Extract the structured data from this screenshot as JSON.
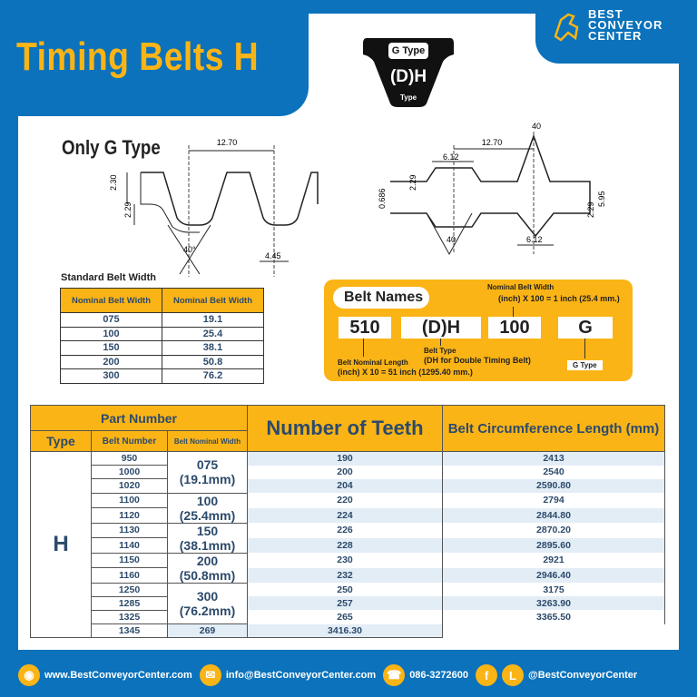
{
  "header": {
    "title": "Timing Belts H",
    "logo_text": [
      "BEST",
      "CONVEYOR",
      "CENTER"
    ]
  },
  "badge": {
    "top": "G Type",
    "middle": "(D)H",
    "bottom": "Type"
  },
  "diagram_left": {
    "label": "Only G Type",
    "dims": [
      "12.70",
      "2.30",
      "2.29",
      "40°",
      "4.45"
    ]
  },
  "diagram_right": {
    "dims": [
      "40",
      "12.70",
      "6.12",
      "2.29",
      "0.686",
      "5.95",
      "2.29",
      "40",
      "6.12"
    ]
  },
  "standard_width": {
    "title": "Standard Belt Width",
    "headers": [
      "Nominal Belt Width",
      "Nominal Belt Width"
    ],
    "rows": [
      [
        "075",
        "19.1"
      ],
      [
        "100",
        "25.4"
      ],
      [
        "150",
        "38.1"
      ],
      [
        "200",
        "50.8"
      ],
      [
        "300",
        "76.2"
      ]
    ]
  },
  "belt_names": {
    "title": "Belt Names",
    "boxes": [
      "510",
      "(D)H",
      "100",
      "G"
    ],
    "nominal_width_label": "Nominal Belt Width",
    "nominal_width_desc": "(inch) X 100 = 1 inch (25.4 mm.)",
    "length_label": "Belt Nominal Length",
    "length_desc": "(inch) X 10 = 51 inch (1295.40 mm.)",
    "type_label": "Belt Type",
    "type_desc": "(DH for Double Timing Belt)",
    "g_label": "G Type"
  },
  "table": {
    "part_number": "Part Number",
    "type": "Type",
    "belt_number": "Belt Number",
    "belt_width": "Belt Nominal Width",
    "teeth": "Number of Teeth",
    "length": "Belt Circumference Length (mm)",
    "type_value": "H",
    "widths": [
      [
        "075",
        "(19.1mm)"
      ],
      [
        "100",
        "(25.4mm)"
      ],
      [
        "150",
        "(38.1mm)"
      ],
      [
        "200",
        "(50.8mm)"
      ],
      [
        "300",
        "(76.2mm)"
      ]
    ],
    "rows": [
      [
        "950",
        "190",
        "2413"
      ],
      [
        "1000",
        "200",
        "2540"
      ],
      [
        "1020",
        "204",
        "2590.80"
      ],
      [
        "1100",
        "220",
        "2794"
      ],
      [
        "1120",
        "224",
        "2844.80"
      ],
      [
        "1130",
        "226",
        "2870.20"
      ],
      [
        "1140",
        "228",
        "2895.60"
      ],
      [
        "1150",
        "230",
        "2921"
      ],
      [
        "1160",
        "232",
        "2946.40"
      ],
      [
        "1250",
        "250",
        "3175"
      ],
      [
        "1285",
        "257",
        "3263.90"
      ],
      [
        "1325",
        "265",
        "3365.50"
      ],
      [
        "1345",
        "269",
        "3416.30"
      ]
    ]
  },
  "footer": {
    "website": "www.BestConveyorCenter.com",
    "email": "info@BestConveyorCenter.com",
    "phone": "086-3272600",
    "social": "@BestConveyorCenter"
  },
  "colors": {
    "blue": "#0b72bb",
    "yellow": "#fbb416",
    "text": "#2c4a6b",
    "stripe": "#e3edf6"
  }
}
